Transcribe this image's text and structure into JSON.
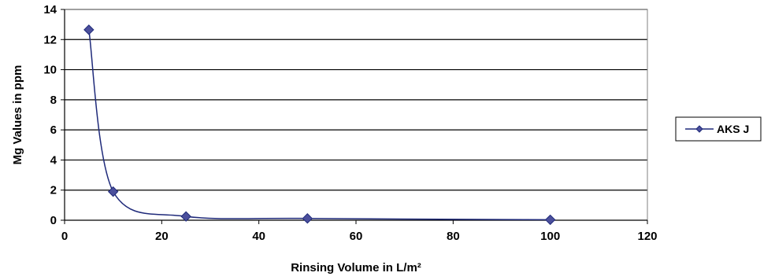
{
  "chart_data": {
    "type": "scatter",
    "title": "",
    "xlabel": "Rinsing Volume in L/m²",
    "ylabel": "Mg Values in ppm",
    "xlim": [
      0,
      120
    ],
    "ylim": [
      0,
      14
    ],
    "x_ticks": [
      "0",
      "20",
      "40",
      "60",
      "80",
      "100",
      "120"
    ],
    "y_ticks": [
      "0",
      "2",
      "4",
      "6",
      "8",
      "10",
      "12",
      "14"
    ],
    "grid": "horizontal major gridlines",
    "smoothed_line": true,
    "legend_position": "right",
    "series": [
      {
        "name": "AKS J",
        "color": "#1f2a7a",
        "marker_color": "#4b4f9c",
        "x": [
          5,
          10,
          25,
          50,
          100
        ],
        "y": [
          12.65,
          1.9,
          0.25,
          0.12,
          0.03
        ]
      }
    ]
  }
}
